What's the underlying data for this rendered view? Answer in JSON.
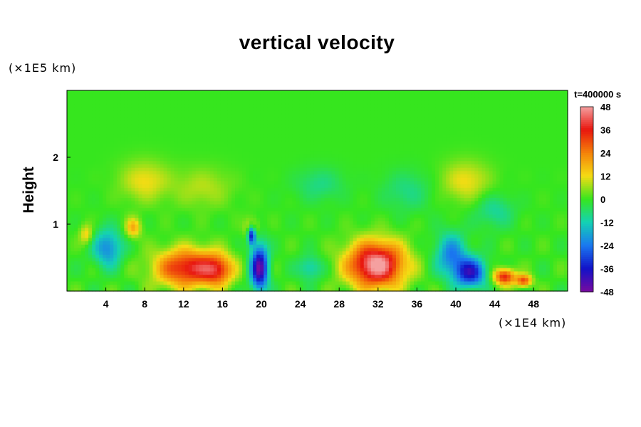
{
  "chart_data": {
    "type": "heatmap",
    "title": "vertical velocity",
    "xlabel": "",
    "ylabel": "Height",
    "x_unit": "(×1E4 km)",
    "y_unit": "(×1E5 km)",
    "time_label": "t=400000 s",
    "xlim": [
      0,
      51.5
    ],
    "ylim": [
      0,
      3.0
    ],
    "x_ticks": [
      4,
      8,
      12,
      16,
      20,
      24,
      28,
      32,
      36,
      40,
      44,
      48
    ],
    "y_ticks": [
      1,
      2
    ],
    "colorbar": {
      "range": [
        -48,
        48
      ],
      "ticks": [
        48,
        36,
        24,
        12,
        0,
        -12,
        -24,
        -36,
        -48
      ],
      "colors": [
        "#f5a0a0",
        "#e8160e",
        "#f5820a",
        "#f5dc14",
        "#36e61e",
        "#14d2b4",
        "#1a78f0",
        "#1212c8",
        "#780aa0"
      ]
    },
    "features": [
      {
        "x": 12.5,
        "y": 0.35,
        "value": 38,
        "sx": 3.3,
        "sy": 0.28
      },
      {
        "x": 15.5,
        "y": 0.32,
        "value": 24,
        "sx": 1.5,
        "sy": 0.22
      },
      {
        "x": 31.8,
        "y": 0.4,
        "value": 50,
        "sx": 2.9,
        "sy": 0.34
      },
      {
        "x": 45.0,
        "y": 0.22,
        "value": 36,
        "sx": 1.1,
        "sy": 0.12
      },
      {
        "x": 47.0,
        "y": 0.16,
        "value": 30,
        "sx": 0.8,
        "sy": 0.09
      },
      {
        "x": 19.8,
        "y": 0.35,
        "value": -46,
        "sx": 0.9,
        "sy": 0.34
      },
      {
        "x": 19.0,
        "y": 0.85,
        "value": -42,
        "sx": 0.4,
        "sy": 0.14
      },
      {
        "x": 41.5,
        "y": 0.28,
        "value": -36,
        "sx": 1.6,
        "sy": 0.22
      },
      {
        "x": 39.5,
        "y": 0.55,
        "value": -22,
        "sx": 1.6,
        "sy": 0.32
      },
      {
        "x": 4.2,
        "y": 0.65,
        "value": -22,
        "sx": 1.5,
        "sy": 0.28
      },
      {
        "x": 25.0,
        "y": 0.35,
        "value": -14,
        "sx": 1.2,
        "sy": 0.18
      },
      {
        "x": 2.0,
        "y": 0.85,
        "value": 14,
        "sx": 0.7,
        "sy": 0.15
      },
      {
        "x": 6.8,
        "y": 0.95,
        "value": 18,
        "sx": 0.8,
        "sy": 0.15
      },
      {
        "x": 19.0,
        "y": 0.95,
        "value": 16,
        "sx": 0.7,
        "sy": 0.15
      },
      {
        "x": 8.0,
        "y": 1.65,
        "value": 12,
        "sx": 2.5,
        "sy": 0.3
      },
      {
        "x": 14.0,
        "y": 1.55,
        "value": 8,
        "sx": 3.0,
        "sy": 0.3
      },
      {
        "x": 41.0,
        "y": 1.65,
        "value": 12,
        "sx": 2.5,
        "sy": 0.3
      },
      {
        "x": 44.0,
        "y": 1.2,
        "value": -10,
        "sx": 2.0,
        "sy": 0.25
      },
      {
        "x": 26.0,
        "y": 1.6,
        "value": -8,
        "sx": 2.5,
        "sy": 0.25
      },
      {
        "x": 35.0,
        "y": 1.5,
        "value": -8,
        "sx": 2.5,
        "sy": 0.3
      }
    ]
  }
}
